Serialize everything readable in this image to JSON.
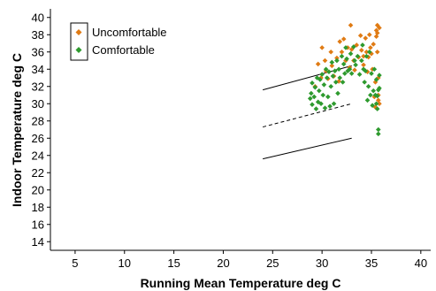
{
  "chart_data": {
    "type": "scatter",
    "title": "",
    "xlabel": "Running Mean Temperature deg C",
    "ylabel": "Indoor Temperature deg C",
    "xlim": [
      2.5,
      41
    ],
    "ylim": [
      13,
      41
    ],
    "x_ticks": [
      "5",
      "10",
      "15",
      "20",
      "25",
      "30",
      "35",
      "40"
    ],
    "y_ticks": [
      "14",
      "16",
      "18",
      "20",
      "22",
      "24",
      "26",
      "28",
      "30",
      "32",
      "34",
      "36",
      "38",
      "40"
    ],
    "grid": false,
    "legend_position": "top-left",
    "series": [
      {
        "name": "Uncomfortable",
        "color": "#e07b14",
        "marker": "diamond",
        "points": [
          [
            29.3,
            32.0
          ],
          [
            29.6,
            34.6
          ],
          [
            29.9,
            33.0
          ],
          [
            30.0,
            36.5
          ],
          [
            30.3,
            35.0
          ],
          [
            30.4,
            33.8
          ],
          [
            30.6,
            32.9
          ],
          [
            30.9,
            36.0
          ],
          [
            31.0,
            34.4
          ],
          [
            31.2,
            33.2
          ],
          [
            31.5,
            35.3
          ],
          [
            31.7,
            32.6
          ],
          [
            31.8,
            37.2
          ],
          [
            32.0,
            36.0
          ],
          [
            32.2,
            37.5
          ],
          [
            32.4,
            35.0
          ],
          [
            32.6,
            36.5
          ],
          [
            32.8,
            34.2
          ],
          [
            32.9,
            39.1
          ],
          [
            33.0,
            36.3
          ],
          [
            33.2,
            35.0
          ],
          [
            33.3,
            33.9
          ],
          [
            33.5,
            36.8
          ],
          [
            33.7,
            35.4
          ],
          [
            33.9,
            37.9
          ],
          [
            34.0,
            36.2
          ],
          [
            34.2,
            35.5
          ],
          [
            34.2,
            34.5
          ],
          [
            34.4,
            37.6
          ],
          [
            34.5,
            36.0
          ],
          [
            34.6,
            33.7
          ],
          [
            34.7,
            35.4
          ],
          [
            34.8,
            38.0
          ],
          [
            34.9,
            36.5
          ],
          [
            35.0,
            35.8
          ],
          [
            35.1,
            34.0
          ],
          [
            35.2,
            36.9
          ],
          [
            35.3,
            30.8
          ],
          [
            35.4,
            32.5
          ],
          [
            35.4,
            29.6
          ],
          [
            35.5,
            37.8
          ],
          [
            35.5,
            38.5
          ],
          [
            35.6,
            39.1
          ],
          [
            35.6,
            36.0
          ],
          [
            35.7,
            33.0
          ],
          [
            35.7,
            31.0
          ],
          [
            35.8,
            38.8
          ],
          [
            35.8,
            30.0
          ],
          [
            35.6,
            38.2
          ],
          [
            35.7,
            30.4
          ]
        ]
      },
      {
        "name": "Comfortable",
        "color": "#2e9a2e",
        "marker": "diamond",
        "points": [
          [
            28.8,
            30.6
          ],
          [
            28.9,
            31.2
          ],
          [
            29.0,
            29.9
          ],
          [
            29.0,
            32.4
          ],
          [
            29.2,
            30.8
          ],
          [
            29.3,
            31.9
          ],
          [
            29.4,
            29.4
          ],
          [
            29.5,
            33.0
          ],
          [
            29.6,
            30.2
          ],
          [
            29.7,
            31.5
          ],
          [
            29.8,
            32.8
          ],
          [
            29.9,
            30.0
          ],
          [
            30.0,
            33.4
          ],
          [
            30.1,
            31.0
          ],
          [
            30.2,
            32.2
          ],
          [
            30.3,
            29.5
          ],
          [
            30.4,
            34.0
          ],
          [
            30.5,
            33.0
          ],
          [
            30.6,
            30.8
          ],
          [
            30.7,
            33.7
          ],
          [
            30.8,
            29.7
          ],
          [
            30.9,
            32.0
          ],
          [
            31.0,
            34.8
          ],
          [
            31.1,
            33.2
          ],
          [
            31.2,
            30.0
          ],
          [
            31.3,
            33.8
          ],
          [
            31.4,
            32.5
          ],
          [
            31.5,
            35.0
          ],
          [
            31.6,
            31.2
          ],
          [
            31.7,
            34.0
          ],
          [
            31.8,
            33.0
          ],
          [
            32.0,
            35.5
          ],
          [
            32.1,
            32.5
          ],
          [
            32.2,
            34.6
          ],
          [
            32.3,
            33.5
          ],
          [
            32.4,
            36.5
          ],
          [
            32.5,
            35.2
          ],
          [
            32.6,
            33.8
          ],
          [
            32.8,
            34.0
          ],
          [
            32.9,
            35.8
          ],
          [
            33.0,
            33.5
          ],
          [
            33.2,
            36.6
          ],
          [
            33.3,
            35.0
          ],
          [
            33.4,
            34.5
          ],
          [
            33.6,
            35.5
          ],
          [
            33.8,
            33.4
          ],
          [
            34.0,
            35.0
          ],
          [
            34.1,
            36.8
          ],
          [
            34.2,
            34.0
          ],
          [
            34.3,
            32.5
          ],
          [
            34.4,
            33.8
          ],
          [
            34.5,
            35.5
          ],
          [
            34.6,
            30.4
          ],
          [
            34.7,
            32.0
          ],
          [
            34.8,
            36.0
          ],
          [
            34.9,
            31.0
          ],
          [
            35.0,
            33.5
          ],
          [
            35.1,
            29.8
          ],
          [
            35.2,
            31.5
          ],
          [
            35.3,
            34.0
          ],
          [
            35.4,
            31.0
          ],
          [
            35.5,
            30.0
          ],
          [
            35.5,
            32.8
          ],
          [
            35.6,
            29.4
          ],
          [
            35.7,
            31.6
          ],
          [
            35.7,
            27.0
          ],
          [
            35.7,
            26.5
          ],
          [
            35.8,
            33.3
          ],
          [
            35.8,
            31.8
          ],
          [
            35.6,
            30.9
          ]
        ]
      }
    ],
    "lines": [
      {
        "style": "solid",
        "x": [
          24,
          33
        ],
        "y": [
          31.6,
          34.4
        ]
      },
      {
        "style": "dashed",
        "x": [
          24,
          33
        ],
        "y": [
          27.3,
          30.0
        ]
      },
      {
        "style": "solid",
        "x": [
          24,
          33
        ],
        "y": [
          23.6,
          26.0
        ]
      }
    ]
  }
}
